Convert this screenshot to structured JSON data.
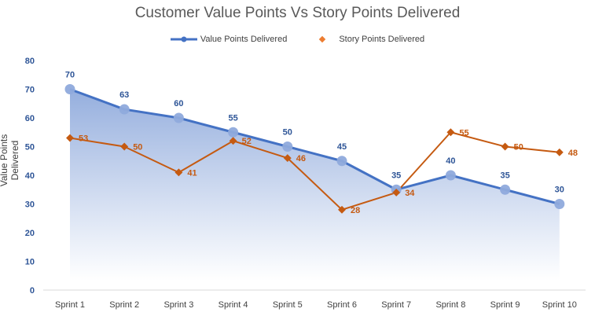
{
  "chart_data": {
    "type": "line",
    "title": "Customer Value Points Vs Story Points Delivered",
    "ylabel": "Value Points Delivered",
    "xlabel": "",
    "ylim": [
      0,
      80
    ],
    "yticks": [
      0,
      10,
      20,
      30,
      40,
      50,
      60,
      70,
      80
    ],
    "grid": false,
    "legend": "top-center",
    "categories": [
      "Sprint 1",
      "Sprint 2",
      "Sprint 3",
      "Sprint 4",
      "Sprint 5",
      "Sprint 6",
      "Sprint 7",
      "Sprint 8",
      "Sprint 9",
      "Sprint 10"
    ],
    "series": [
      {
        "name": "Value Points Delivered",
        "values": [
          70,
          63,
          60,
          55,
          50,
          45,
          35,
          40,
          35,
          30
        ],
        "color": "#4472C4",
        "style": "area-line-circle"
      },
      {
        "name": "Story Points Delivered",
        "values": [
          53,
          50,
          41,
          52,
          46,
          28,
          34,
          55,
          50,
          48
        ],
        "color": "#C55A11",
        "style": "line-diamond"
      }
    ]
  }
}
